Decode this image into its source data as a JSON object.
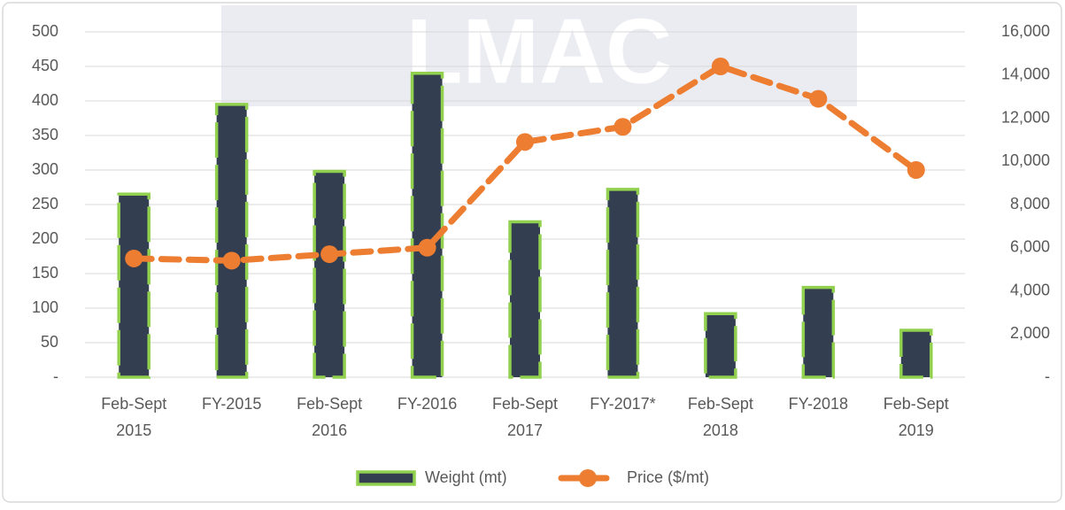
{
  "chart_data": {
    "type": "bar-line",
    "watermark": "LMAC",
    "categories": [
      "Feb-Sept 2015",
      "FY-2015",
      "Feb-Sept 2016",
      "FY-2016",
      "Feb-Sept 2017",
      "FY-2017*",
      "Feb-Sept 2018",
      "FY-2018",
      "Feb-Sept 2019"
    ],
    "series": [
      {
        "name": "Weight (mt)",
        "type": "bar",
        "color": "#333f50",
        "edge_color": "#92d050",
        "values": [
          265,
          395,
          298,
          440,
          225,
          272,
          92,
          130,
          68
        ]
      },
      {
        "name": "Price ($/mt)",
        "type": "line",
        "axis": "y2",
        "color": "#ed7d31",
        "values": [
          5500,
          5400,
          5700,
          6000,
          10900,
          11600,
          14400,
          12900,
          9600
        ]
      }
    ],
    "ylim": [
      0,
      500
    ],
    "yticks": [
      {
        "value": 0,
        "label": "-"
      },
      50,
      100,
      150,
      200,
      250,
      300,
      350,
      400,
      450,
      500
    ],
    "y2lim": [
      0,
      16000
    ],
    "y2ticks": [
      {
        "value": 0,
        "label": "-"
      },
      {
        "value": 2000,
        "label": "2,000"
      },
      {
        "value": 4000,
        "label": "4,000"
      },
      {
        "value": 6000,
        "label": "6,000"
      },
      {
        "value": 8000,
        "label": "8,000"
      },
      {
        "value": 10000,
        "label": "10,000"
      },
      {
        "value": 12000,
        "label": "12,000"
      },
      {
        "value": 14000,
        "label": "14,000"
      },
      {
        "value": 16000,
        "label": "16,000"
      }
    ],
    "grid": true,
    "legend": "bottom"
  }
}
